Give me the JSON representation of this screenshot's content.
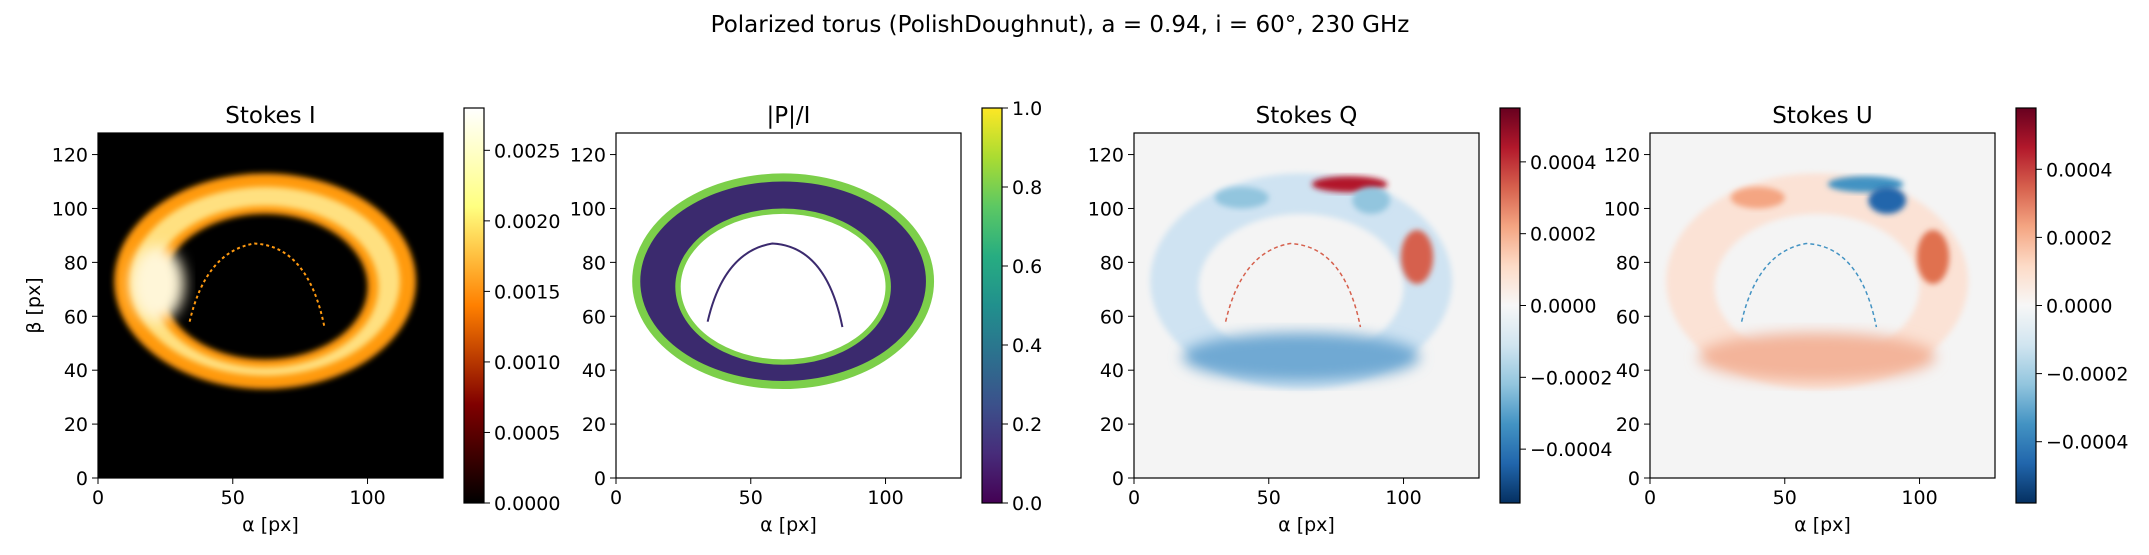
{
  "title": "Polarized torus (PolishDoughnut), a = 0.94, i = 60°, 230 GHz",
  "colors": {
    "inferno": [
      "#000004",
      "#1b0c41",
      "#4a0c6b",
      "#781c6d",
      "#a52c60",
      "#cf4446",
      "#ed6925",
      "#fb9b06",
      "#f7d13d",
      "#fcffa4"
    ],
    "afmhot": [
      "#000000",
      "#800000",
      "#ff8000",
      "#ffff80",
      "#ffffff"
    ],
    "viridis": [
      "#440154",
      "#472c7a",
      "#3b518b",
      "#2c718e",
      "#21908d",
      "#27ad81",
      "#5cc863",
      "#aadc32",
      "#fde725"
    ],
    "rdbu_r": [
      "#053061",
      "#2166ac",
      "#4393c3",
      "#92c5de",
      "#d1e5f0",
      "#f7f7f7",
      "#fddbc7",
      "#f4a582",
      "#d6604d",
      "#b2182b",
      "#67001f"
    ]
  },
  "chart_data": [
    {
      "type": "heatmap",
      "title": "Stokes I",
      "xlabel": "α [px]",
      "ylabel": "β [px]",
      "xticks": [
        "0",
        "50",
        "100"
      ],
      "yticks": [
        "0",
        "20",
        "40",
        "60",
        "80",
        "100",
        "120"
      ],
      "xlim": [
        0,
        128
      ],
      "ylim": [
        0,
        128
      ],
      "colormap": "afmhot",
      "background": "#000000",
      "colorbar": {
        "range": [
          0,
          0.0028
        ],
        "ticks": [
          "0.0000",
          "0.0005",
          "0.0010",
          "0.0015",
          "0.0020",
          "0.0025"
        ]
      }
    },
    {
      "type": "heatmap",
      "title": "|P|/I",
      "xlabel": "α [px]",
      "ylabel": "",
      "xticks": [
        "0",
        "50",
        "100"
      ],
      "yticks": [
        "0",
        "20",
        "40",
        "60",
        "80",
        "100",
        "120"
      ],
      "xlim": [
        0,
        128
      ],
      "ylim": [
        0,
        128
      ],
      "colormap": "viridis",
      "background": "#ffffff",
      "colorbar": {
        "range": [
          0,
          1.0
        ],
        "ticks": [
          "0.0",
          "0.2",
          "0.4",
          "0.6",
          "0.8",
          "1.0"
        ]
      }
    },
    {
      "type": "heatmap",
      "title": "Stokes Q",
      "xlabel": "α [px]",
      "ylabel": "",
      "xticks": [
        "0",
        "50",
        "100"
      ],
      "yticks": [
        "0",
        "20",
        "40",
        "60",
        "80",
        "100",
        "120"
      ],
      "xlim": [
        0,
        128
      ],
      "ylim": [
        0,
        128
      ],
      "colormap": "RdBu_r",
      "background": "#f4f4f4",
      "colorbar": {
        "range": [
          -0.00055,
          0.00055
        ],
        "ticks": [
          "−0.0004",
          "−0.0002",
          "0.0000",
          "0.0002",
          "0.0004"
        ]
      }
    },
    {
      "type": "heatmap",
      "title": "Stokes U",
      "xlabel": "α [px]",
      "ylabel": "",
      "xticks": [
        "0",
        "50",
        "100"
      ],
      "yticks": [
        "0",
        "20",
        "40",
        "60",
        "80",
        "100",
        "120"
      ],
      "xlim": [
        0,
        128
      ],
      "ylim": [
        0,
        128
      ],
      "colormap": "RdBu_r",
      "background": "#f4f4f4",
      "colorbar": {
        "range": [
          -0.00058,
          0.00058
        ],
        "ticks": [
          "−0.0004",
          "−0.0002",
          "0.0000",
          "0.0002",
          "0.0004"
        ]
      }
    }
  ]
}
